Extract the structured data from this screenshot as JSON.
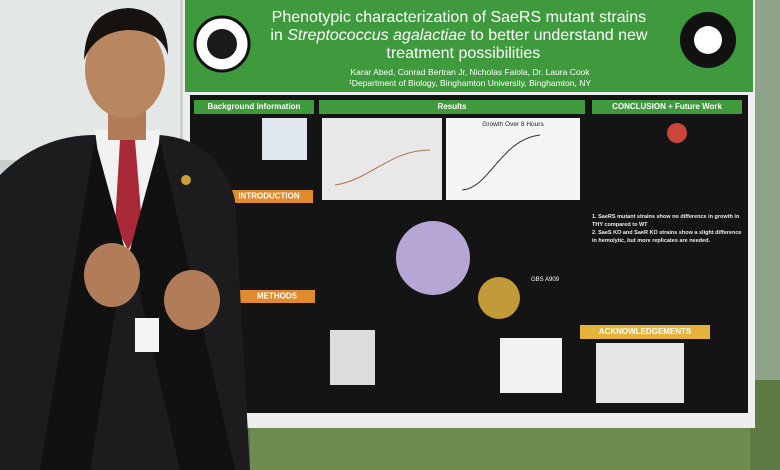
{
  "poster": {
    "title_segments": [
      "Phenotypic characterization of SaeRS mutant strains",
      "in ",
      "Streptococcus agalactiae",
      " to better understand new",
      "treatment possibilities"
    ],
    "authors": "Karar Abed, Conrad Bertran Jr, Nicholas Faiola, Dr. Laura Cook",
    "affiliation": "¹Department of Biology, Binghamton University, Binghamton, NY",
    "sections": {
      "background": "Background Information",
      "results": "Results",
      "conclusion": "CONCLUSION + Future Work",
      "introduction": "INTRODUCTION",
      "methods": "METHODS",
      "acknowledgements": "ACKNOWLEDGEMENTS"
    },
    "chart_title": "Growth Over 8 Hours",
    "strain_label": "GBS A909",
    "conclusions": [
      "1. SaeRS mutant strains show no difference in growth in",
      "THY compared to WT",
      "2. SaeS KO and SaeR KO strains show a slight difference",
      "in hemolytic, but more replicates are needed."
    ]
  }
}
